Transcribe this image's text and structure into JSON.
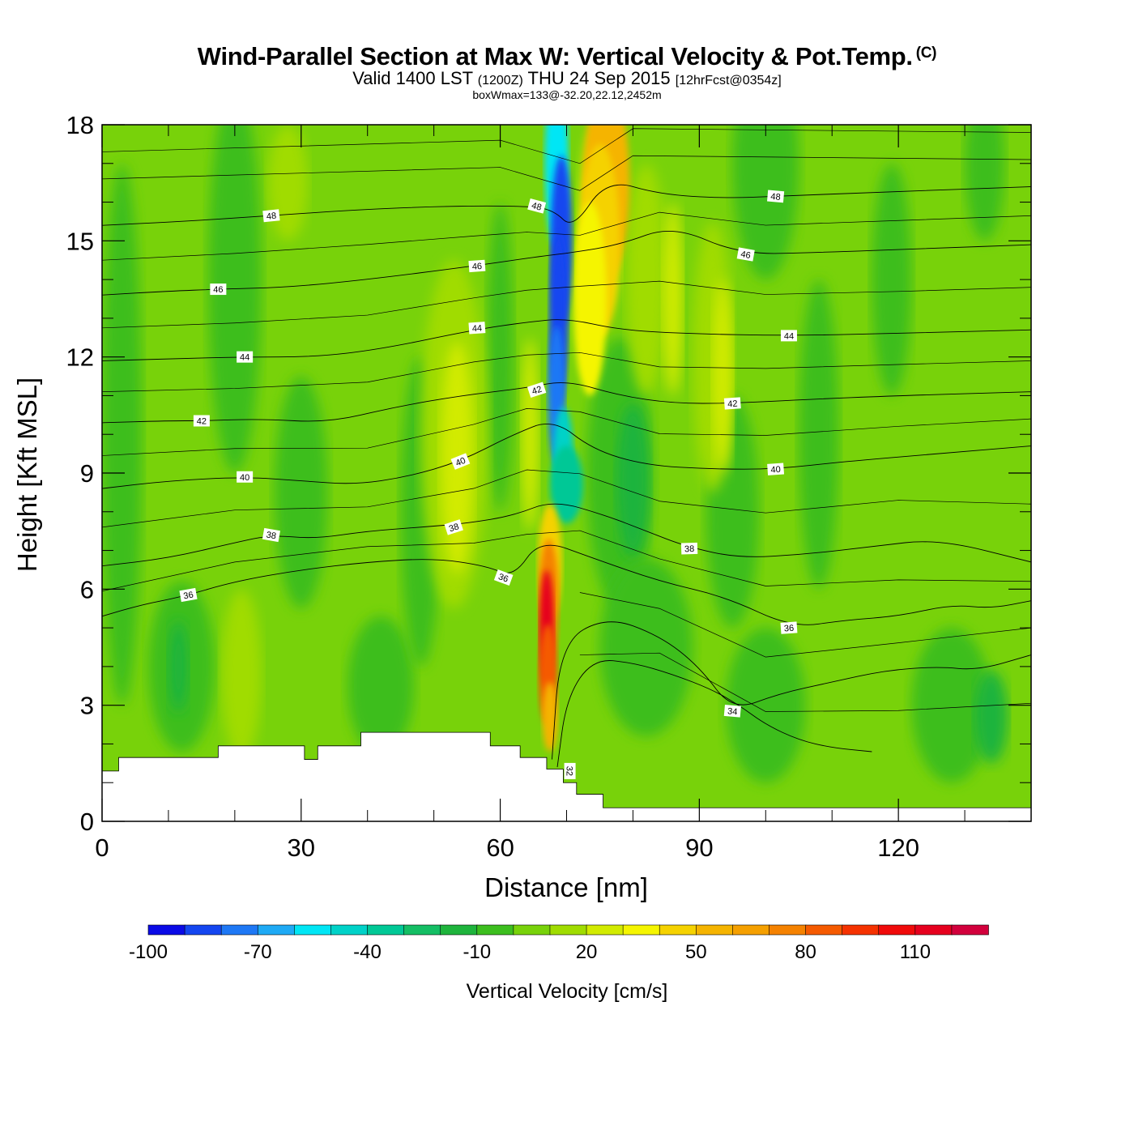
{
  "header": {
    "title": "Wind-Parallel Section at Max W: Vertical Velocity & Pot.Temp.",
    "copyright": "(C)",
    "valid_prefix": "Valid 1400 LST",
    "valid_utc": "(1200Z)",
    "valid_date": "THU 24 Sep 2015",
    "forecast": "[12hrFcst@0354z]",
    "box_info": "boxWmax=133@-32.20,22.12,2452m"
  },
  "chart_data": {
    "type": "heatmap",
    "xlabel": "Distance [nm]",
    "ylabel": "Height [Kft MSL]",
    "xlim": [
      0,
      140
    ],
    "ylim": [
      0,
      18
    ],
    "x_ticks": [
      0,
      30,
      60,
      90,
      120
    ],
    "y_ticks": [
      0,
      3,
      6,
      9,
      12,
      15,
      18
    ],
    "colorbar": {
      "title": "Vertical Velocity [cm/s]",
      "levels": [
        -100,
        -90,
        -80,
        -70,
        -60,
        -50,
        -40,
        -30,
        -20,
        -10,
        0,
        10,
        20,
        30,
        40,
        50,
        60,
        70,
        80,
        90,
        100,
        110,
        120,
        130
      ],
      "tick_labels": [
        "-100",
        "-70",
        "-40",
        "-10",
        "20",
        "50",
        "80",
        "110"
      ],
      "tick_values": [
        -100,
        -70,
        -40,
        -10,
        20,
        50,
        80,
        110
      ],
      "colors": [
        "#0a0ae6",
        "#1446f0",
        "#1e78f5",
        "#1eaaf5",
        "#00e6f5",
        "#00d2c8",
        "#00c896",
        "#14be64",
        "#1eb43c",
        "#3cbe1e",
        "#78d20a",
        "#a0dc00",
        "#d2eb00",
        "#f5f500",
        "#f5d200",
        "#f5b400",
        "#f5a000",
        "#f58200",
        "#f55a00",
        "#f53200",
        "#f00a0a",
        "#e6001e",
        "#d2003c"
      ]
    },
    "updraft_core": {
      "x": 67,
      "y_range": [
        2,
        8
      ],
      "peak_cm_s": 133
    },
    "downdraft_core": {
      "x_range": [
        66,
        70
      ],
      "y_range": [
        9,
        18
      ],
      "min_cm_s": -100
    },
    "terrain": [
      {
        "x": 0,
        "top": 1.3
      },
      {
        "x": 2.5,
        "top": 1.65
      },
      {
        "x": 17.5,
        "top": 1.95
      },
      {
        "x": 30.5,
        "top": 1.6
      },
      {
        "x": 32.5,
        "top": 1.95
      },
      {
        "x": 39,
        "top": 2.3
      },
      {
        "x": 58.5,
        "top": 1.95
      },
      {
        "x": 63,
        "top": 1.65
      },
      {
        "x": 67,
        "top": 1.35
      },
      {
        "x": 69.5,
        "top": 1.0
      },
      {
        "x": 71.5,
        "top": 0.7
      },
      {
        "x": 75.5,
        "top": 0.35
      },
      {
        "x": 140,
        "top": 0.35
      }
    ],
    "theta_contours": [
      {
        "label": "32",
        "points": [
          [
            68.6,
            1.4
          ],
          [
            70,
            3.2
          ],
          [
            74,
            4.2
          ],
          [
            80,
            4.1
          ],
          [
            86,
            3.8
          ],
          [
            92,
            3.4
          ],
          [
            96,
            3.0
          ],
          [
            100,
            2.5
          ],
          [
            105,
            2.1
          ],
          [
            110,
            1.9
          ],
          [
            116,
            1.8
          ]
        ]
      },
      {
        "label": "34",
        "points": [
          [
            67.8,
            1.6
          ],
          [
            69,
            4.6
          ],
          [
            76,
            5.3
          ],
          [
            84,
            4.8
          ],
          [
            90,
            4.0
          ],
          [
            95,
            2.85
          ],
          [
            102,
            3.3
          ],
          [
            110,
            3.6
          ],
          [
            118,
            3.9
          ],
          [
            126,
            4.0
          ],
          [
            132,
            3.9
          ],
          [
            140,
            4.3
          ]
        ]
      },
      {
        "label": "36",
        "points": [
          [
            0,
            5.3
          ],
          [
            6,
            5.6
          ],
          [
            12,
            5.8
          ],
          [
            20,
            6.2
          ],
          [
            30,
            6.5
          ],
          [
            40,
            6.7
          ],
          [
            50,
            6.8
          ],
          [
            58,
            6.6
          ],
          [
            62,
            6.3
          ],
          [
            66,
            7.3
          ],
          [
            74,
            6.8
          ],
          [
            84,
            6.2
          ],
          [
            94,
            5.8
          ],
          [
            104,
            5.0
          ],
          [
            112,
            5.2
          ],
          [
            120,
            5.3
          ],
          [
            128,
            5.6
          ],
          [
            134,
            5.5
          ],
          [
            140,
            5.7
          ]
        ]
      },
      {
        "label": "38",
        "points": [
          [
            0,
            6.6
          ],
          [
            10,
            6.8
          ],
          [
            20,
            7.2
          ],
          [
            25.5,
            7.4
          ],
          [
            32,
            7.3
          ],
          [
            40,
            7.5
          ],
          [
            48,
            7.6
          ],
          [
            55,
            7.7
          ],
          [
            62,
            7.9
          ],
          [
            68,
            8.3
          ],
          [
            76,
            7.9
          ],
          [
            82,
            7.5
          ],
          [
            88,
            7.1
          ],
          [
            96,
            6.8
          ],
          [
            106,
            6.9
          ],
          [
            116,
            7.1
          ],
          [
            126,
            7.3
          ],
          [
            140,
            6.7
          ]
        ]
      },
      {
        "label": "40",
        "points": [
          [
            0,
            8.6
          ],
          [
            10,
            8.8
          ],
          [
            21.5,
            8.9
          ],
          [
            30,
            8.8
          ],
          [
            38,
            8.7
          ],
          [
            46,
            8.9
          ],
          [
            54,
            9.3
          ],
          [
            62,
            10.0
          ],
          [
            68,
            10.4
          ],
          [
            74,
            9.6
          ],
          [
            82,
            9.2
          ],
          [
            92,
            9.1
          ],
          [
            101.5,
            9.1
          ],
          [
            112,
            9.3
          ],
          [
            126,
            9.5
          ],
          [
            140,
            9.7
          ]
        ]
      },
      {
        "label": "42",
        "points": [
          [
            0,
            10.3
          ],
          [
            10,
            10.35
          ],
          [
            15,
            10.35
          ],
          [
            24,
            10.4
          ],
          [
            34,
            10.3
          ],
          [
            44,
            10.7
          ],
          [
            54,
            11.0
          ],
          [
            64,
            11.2
          ],
          [
            70,
            11.4
          ],
          [
            78,
            11.0
          ],
          [
            86,
            10.8
          ],
          [
            95,
            10.8
          ],
          [
            106,
            10.9
          ],
          [
            120,
            11.0
          ],
          [
            140,
            11.1
          ]
        ]
      },
      {
        "label": "44",
        "points": [
          [
            0,
            11.9
          ],
          [
            10,
            11.95
          ],
          [
            21.5,
            12.0
          ],
          [
            32,
            12.0
          ],
          [
            42,
            12.2
          ],
          [
            56,
            12.7
          ],
          [
            64,
            12.9
          ],
          [
            70,
            13.0
          ],
          [
            78,
            12.7
          ],
          [
            88,
            12.6
          ],
          [
            103.5,
            12.55
          ],
          [
            118,
            12.6
          ],
          [
            140,
            12.7
          ]
        ]
      },
      {
        "label": "46",
        "points": [
          [
            0,
            13.6
          ],
          [
            10,
            13.7
          ],
          [
            17.5,
            13.75
          ],
          [
            28,
            13.8
          ],
          [
            40,
            14.0
          ],
          [
            56,
            14.35
          ],
          [
            66,
            14.6
          ],
          [
            71,
            14.7
          ],
          [
            78,
            14.9
          ],
          [
            86,
            15.4
          ],
          [
            96,
            14.65
          ],
          [
            108,
            14.7
          ],
          [
            124,
            14.8
          ],
          [
            140,
            14.9
          ]
        ]
      },
      {
        "label": "48",
        "points": [
          [
            0,
            15.4
          ],
          [
            12,
            15.5
          ],
          [
            25.5,
            15.65
          ],
          [
            38,
            15.8
          ],
          [
            52,
            15.9
          ],
          [
            64,
            15.9
          ],
          [
            68,
            15.8
          ],
          [
            71,
            15.3
          ],
          [
            76,
            16.6
          ],
          [
            84,
            16.2
          ],
          [
            94,
            16.1
          ],
          [
            101.5,
            16.15
          ],
          [
            116,
            16.25
          ],
          [
            140,
            16.4
          ]
        ]
      }
    ],
    "contour_label_positions": [
      {
        "text": "48",
        "x": 25.5,
        "y": 15.65,
        "angle": -6
      },
      {
        "text": "48",
        "x": 65.5,
        "y": 15.9,
        "angle": 15
      },
      {
        "text": "48",
        "x": 101.5,
        "y": 16.15,
        "angle": 5
      },
      {
        "text": "46",
        "x": 17.5,
        "y": 13.75,
        "angle": 0
      },
      {
        "text": "46",
        "x": 56.5,
        "y": 14.35,
        "angle": -4
      },
      {
        "text": "46",
        "x": 97,
        "y": 14.65,
        "angle": 10
      },
      {
        "text": "44",
        "x": 21.5,
        "y": 12.0,
        "angle": 0
      },
      {
        "text": "44",
        "x": 56.5,
        "y": 12.75,
        "angle": -4
      },
      {
        "text": "44",
        "x": 103.5,
        "y": 12.55,
        "angle": 0
      },
      {
        "text": "42",
        "x": 15,
        "y": 10.35,
        "angle": 0
      },
      {
        "text": "42",
        "x": 65.5,
        "y": 11.15,
        "angle": -18
      },
      {
        "text": "42",
        "x": 95,
        "y": 10.8,
        "angle": -4
      },
      {
        "text": "40",
        "x": 21.5,
        "y": 8.9,
        "angle": 0
      },
      {
        "text": "40",
        "x": 54,
        "y": 9.3,
        "angle": -22
      },
      {
        "text": "40",
        "x": 101.5,
        "y": 9.1,
        "angle": -4
      },
      {
        "text": "38",
        "x": 25.5,
        "y": 7.4,
        "angle": 10
      },
      {
        "text": "38",
        "x": 53,
        "y": 7.6,
        "angle": -18
      },
      {
        "text": "38",
        "x": 88.5,
        "y": 7.05,
        "angle": -2
      },
      {
        "text": "36",
        "x": 13,
        "y": 5.85,
        "angle": -10
      },
      {
        "text": "36",
        "x": 60.5,
        "y": 6.3,
        "angle": 20
      },
      {
        "text": "36",
        "x": 103.5,
        "y": 5.0,
        "angle": -4
      },
      {
        "text": "34",
        "x": 95,
        "y": 2.85,
        "angle": 5
      },
      {
        "text": "32",
        "x": 70.5,
        "y": 1.3,
        "angle": 90
      }
    ]
  }
}
